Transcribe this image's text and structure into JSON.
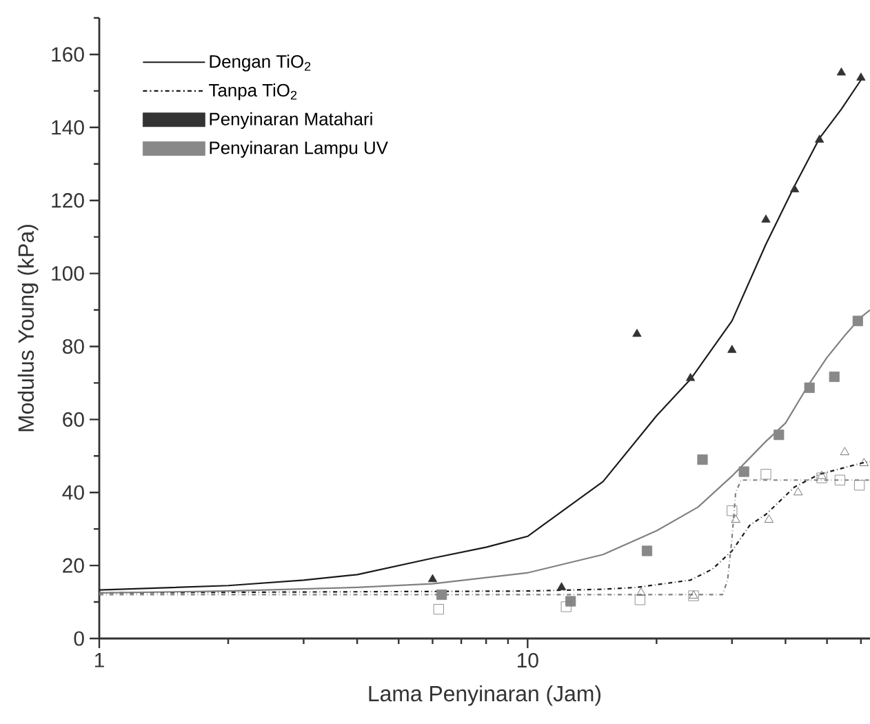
{
  "chart_data": {
    "type": "scatter",
    "xlabel": "Lama Penyinaran (Jam)",
    "ylabel": "Modulus Young (kPa)",
    "log": "x",
    "xlim": [
      1,
      63
    ],
    "ylim": [
      0,
      170
    ],
    "xticks": [
      1,
      10,
      {
        "value": 2,
        "label": null
      },
      {
        "value": 3,
        "label": null
      },
      {
        "value": 4,
        "label": null
      },
      {
        "value": 5,
        "label": null
      },
      {
        "value": 6,
        "label": null
      },
      {
        "value": 7,
        "label": null
      },
      {
        "value": 8,
        "label": null
      },
      {
        "value": 9,
        "label": null
      },
      {
        "value": 20,
        "label": null
      },
      {
        "value": 30,
        "label": null
      },
      {
        "value": 40,
        "label": null
      },
      {
        "value": 50,
        "label": null
      },
      {
        "value": 60,
        "label": null
      }
    ],
    "yticks": [
      0,
      20,
      40,
      60,
      80,
      100,
      120,
      140,
      160,
      {
        "value": 10,
        "label": null
      },
      {
        "value": 30,
        "label": null
      },
      {
        "value": 50,
        "label": null
      },
      {
        "value": 70,
        "label": null
      },
      {
        "value": 90,
        "label": null
      },
      {
        "value": 110,
        "label": null
      },
      {
        "value": 130,
        "label": null
      },
      {
        "value": 150,
        "label": null
      },
      {
        "value": 170,
        "label": null
      }
    ],
    "grid": false,
    "legend": "top left",
    "series": [
      {
        "name": "Dengan TiO$_{2}$",
        "type": "line",
        "color": "#1a1a1a",
        "line_style": "solid",
        "marker": "none",
        "x": [
          1,
          2,
          3,
          4,
          6,
          8,
          10,
          15,
          20,
          24,
          30,
          36,
          42,
          48,
          54,
          60
        ],
        "values": [
          13.3,
          14.5,
          16,
          17.5,
          22,
          25,
          28,
          43,
          61,
          71,
          87,
          108,
          124,
          137,
          145,
          153
        ]
      },
      {
        "name": "Tanpa TiO$_{2}$",
        "type": "line",
        "color": "#1a1a1a",
        "line_style": "dashdot",
        "marker": "none",
        "x": [
          1,
          10,
          15,
          18,
          24,
          27,
          30,
          33,
          36,
          42,
          48,
          60,
          63
        ],
        "values": [
          12.5,
          13,
          13.5,
          14,
          16,
          19,
          24,
          31,
          34,
          41.5,
          45,
          48,
          48.5
        ]
      },
      {
        "name": "Penyinaran Matahari",
        "color": "#333333",
        "marker": "triangle",
        "x": [
          6,
          12,
          18,
          24,
          30,
          36,
          42,
          48,
          54,
          60
        ],
        "values": [
          16.2,
          14,
          83.4,
          71.3,
          79,
          114.7,
          123,
          136.6,
          155,
          153.6
        ]
      },
      {
        "name": "Penyinaran Lampu UV",
        "color": "#888888",
        "marker": "square",
        "x": [
          6.3,
          12.6,
          19,
          25.6,
          32,
          38.6,
          45.5,
          52,
          59
        ],
        "values": [
          12,
          10.2,
          24,
          49,
          45.7,
          55.8,
          68.7,
          71.7,
          87
        ]
      },
      {
        "type": "line",
        "color": "#808080",
        "line_style": "solid",
        "marker": "none",
        "x": [
          1,
          2,
          4,
          6,
          10,
          15,
          20,
          25,
          30,
          36,
          40,
          45,
          50,
          55,
          60,
          63
        ],
        "values": [
          12.5,
          13,
          14,
          15,
          18,
          23,
          29.5,
          36,
          44.5,
          54,
          59,
          69,
          77,
          83,
          88,
          90
        ]
      },
      {
        "type": "line",
        "color": "#808080",
        "line_style": "dashdot",
        "marker": "none",
        "x": [
          1,
          10,
          20,
          28.5,
          29.3,
          30,
          30.6,
          31.5,
          63
        ],
        "values": [
          12,
          12,
          12,
          12,
          16,
          27.5,
          40,
          43.4,
          43.4
        ]
      },
      {
        "color": "#555555",
        "marker": "triangle-open",
        "x": [
          18.4,
          24.4,
          30.6,
          36.6,
          42.8,
          48.6,
          55,
          61
        ],
        "values": [
          12.5,
          11.7,
          32.5,
          32.5,
          40,
          44.5,
          51,
          48
        ]
      },
      {
        "color": "#777777",
        "marker": "square-open",
        "x": [
          6.2,
          12.3,
          18.3,
          24.4,
          30,
          36,
          48.6,
          53.6,
          59.5
        ],
        "values": [
          8,
          8.7,
          10.6,
          11.7,
          35,
          45,
          44,
          43.4,
          42
        ]
      }
    ]
  }
}
